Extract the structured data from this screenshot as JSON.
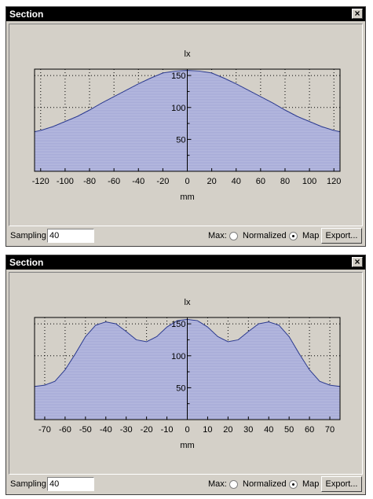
{
  "panels": [
    {
      "title": "Section",
      "sampling_label": "Sampling",
      "sampling_value": "40",
      "max_label": "Max:",
      "normalized_label": "Normalized",
      "map_label": "Map",
      "selected": "Map",
      "export_label": "Export...",
      "chart_data": {
        "type": "area",
        "ylabel": "lx",
        "xlabel": "mm",
        "xlim": [
          -125,
          125
        ],
        "ylim": [
          0,
          160
        ],
        "xticks": [
          -120,
          -100,
          -80,
          -60,
          -40,
          -20,
          0,
          20,
          40,
          60,
          80,
          100,
          120
        ],
        "yticks": [
          50,
          100,
          150
        ],
        "grid": true,
        "fill_color": "#b8bce0",
        "line_color": "#2b3a8f",
        "x": [
          -125,
          -120,
          -110,
          -100,
          -90,
          -80,
          -70,
          -60,
          -50,
          -40,
          -30,
          -20,
          -10,
          0,
          10,
          20,
          30,
          40,
          50,
          60,
          70,
          80,
          90,
          100,
          110,
          120,
          125
        ],
        "y": [
          62,
          64,
          70,
          78,
          86,
          96,
          107,
          117,
          127,
          137,
          146,
          154,
          157,
          158,
          157,
          154,
          146,
          137,
          127,
          117,
          107,
          96,
          86,
          78,
          70,
          64,
          62
        ]
      }
    },
    {
      "title": "Section",
      "sampling_label": "Sampling",
      "sampling_value": "40",
      "max_label": "Max:",
      "normalized_label": "Normalized",
      "map_label": "Map",
      "selected": "Map",
      "export_label": "Export...",
      "chart_data": {
        "type": "area",
        "ylabel": "lx",
        "xlabel": "mm",
        "xlim": [
          -75,
          75
        ],
        "ylim": [
          0,
          160
        ],
        "xticks": [
          -70,
          -60,
          -50,
          -40,
          -30,
          -20,
          -10,
          0,
          10,
          20,
          30,
          40,
          50,
          60,
          70
        ],
        "yticks": [
          50,
          100,
          150
        ],
        "grid": true,
        "fill_color": "#b8bce0",
        "line_color": "#2b3a8f",
        "x": [
          -75,
          -70,
          -65,
          -60,
          -55,
          -50,
          -45,
          -40,
          -35,
          -30,
          -25,
          -20,
          -15,
          -10,
          -5,
          0,
          5,
          10,
          15,
          20,
          25,
          30,
          35,
          40,
          45,
          50,
          55,
          60,
          65,
          70,
          75
        ],
        "y": [
          52,
          54,
          60,
          78,
          103,
          130,
          148,
          153,
          150,
          138,
          125,
          122,
          130,
          145,
          155,
          157,
          155,
          145,
          130,
          122,
          125,
          138,
          150,
          153,
          148,
          130,
          103,
          78,
          60,
          54,
          52
        ]
      }
    }
  ]
}
